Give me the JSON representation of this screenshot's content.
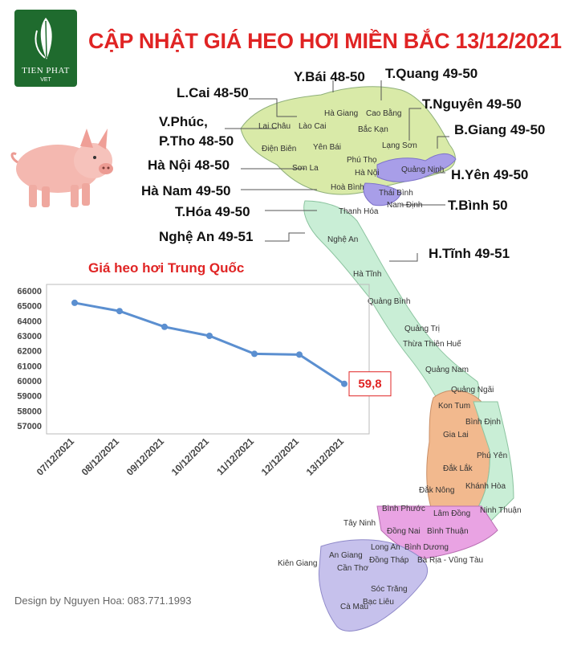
{
  "logo": {
    "name": "TIEN PHAT",
    "sub": "VET"
  },
  "title": "CẬP NHẬT GIÁ HEO HƠI MIỀN BẮC 13/12/2021",
  "prices": [
    {
      "id": "ybai",
      "text": "Y.Bái 48-50"
    },
    {
      "id": "tquang",
      "text": "T.Quang 49-50"
    },
    {
      "id": "lcai",
      "text": "L.Cai 48-50"
    },
    {
      "id": "tnguyen",
      "text": "T.Nguyên 49-50"
    },
    {
      "id": "vphuc1",
      "text": "V.Phúc,"
    },
    {
      "id": "vphuc2",
      "text": "P.Tho 48-50"
    },
    {
      "id": "bgiang",
      "text": "B.Giang 49-50"
    },
    {
      "id": "hanoi",
      "text": "Hà Nội 48-50"
    },
    {
      "id": "hyen",
      "text": "H.Yên 49-50"
    },
    {
      "id": "hanam",
      "text": "Hà Nam 49-50"
    },
    {
      "id": "thoa",
      "text": "T.Hóa 49-50"
    },
    {
      "id": "tbinh",
      "text": "T.Bình 50"
    },
    {
      "id": "nghean",
      "text": "Nghệ An 49-51"
    },
    {
      "id": "htinh",
      "text": "H.Tĩnh 49-51"
    }
  ],
  "map_labels": [
    "Hà Giang",
    "Cao Bằng",
    "Lai Châu",
    "Lào Cai",
    "Bắc Kạn",
    "Điện Biên",
    "Yên Bái",
    "Lạng Sơn",
    "Phú Thọ",
    "Sơn La",
    "Hà Nội",
    "Quảng Ninh",
    "Hoà Bình",
    "Thái Bình",
    "Nam Định",
    "Thanh Hóa",
    "Nghệ An",
    "Hà Tĩnh",
    "Quảng Bình",
    "Quảng Trị",
    "Thừa Thiên Huế",
    "Quảng Nam",
    "Quảng Ngãi",
    "Kon Tum",
    "Bình Định",
    "Gia Lai",
    "Phú Yên",
    "Đắk Lắk",
    "Khánh Hòa",
    "Đắk Nông",
    "Lâm Đồng",
    "Ninh Thuận",
    "Bình Phước",
    "Tây Ninh",
    "Đồng Nai",
    "Bình Thuận",
    "Long An",
    "Bình Dương",
    "An Giang",
    "Đồng Tháp",
    "Bà Rịa - Vũng Tàu",
    "Kiên Giang",
    "Cần Thơ",
    "Sóc Trăng",
    "Bạc Liêu",
    "Cà Mau"
  ],
  "chart_data": {
    "type": "line",
    "title": "Giá heo hơi Trung Quốc",
    "categories": [
      "07/12/2021",
      "08/12/2021",
      "09/12/2021",
      "10/12/2021",
      "11/12/2021",
      "12/12/2021",
      "13/12/2021"
    ],
    "values": [
      65200,
      64650,
      63600,
      63000,
      61800,
      61750,
      59800
    ],
    "ylim": [
      57000,
      66000
    ],
    "yticks": [
      "57000",
      "58000",
      "59000",
      "60000",
      "61000",
      "62000",
      "63000",
      "64000",
      "65000",
      "66000"
    ],
    "annotation": "59,8",
    "line_color": "#5b8fd0",
    "grid": false
  },
  "credit": "Design by Nguyen Hoa: 083.771.1993",
  "colors": {
    "title": "#e02424",
    "north": "#d9eaa8",
    "central": "#c9eed6",
    "highlands": "#f2b98e",
    "hanoi_area": "#a89ee8",
    "south": "#c6c1ec"
  }
}
